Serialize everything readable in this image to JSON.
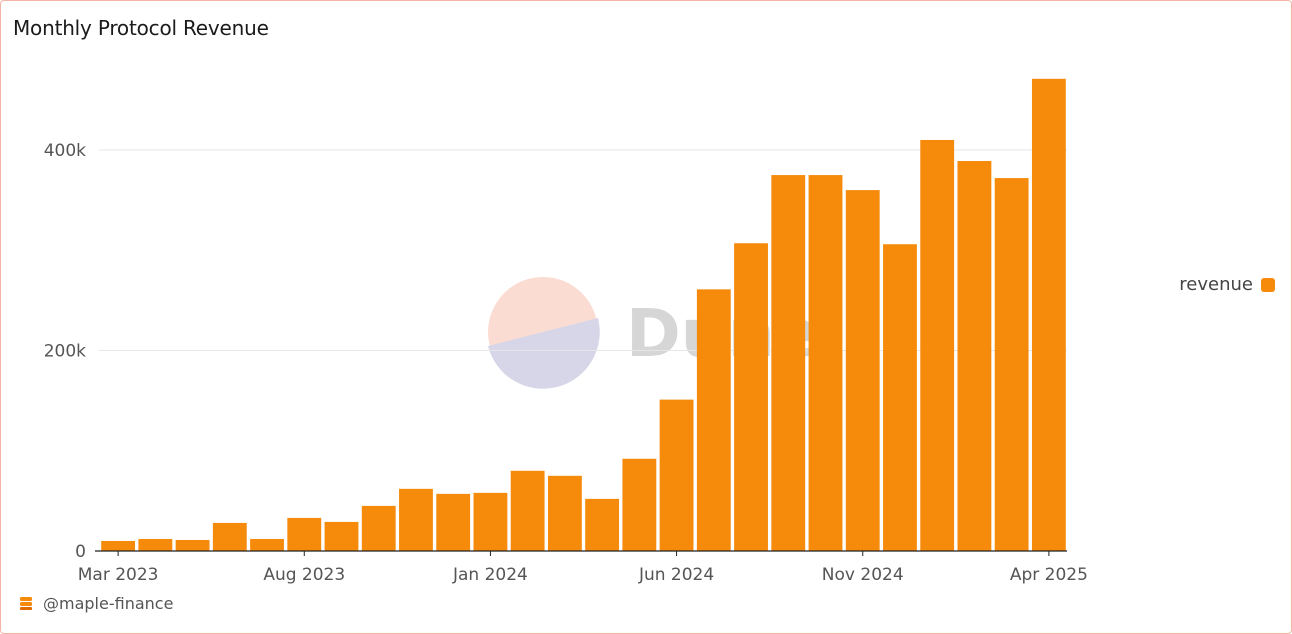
{
  "title": "Monthly Protocol Revenue",
  "watermark": "Dune",
  "footer": {
    "handle": "@maple-finance",
    "icon": "maple-finance-icon"
  },
  "colors": {
    "bar": "#f58a0b",
    "grid": "#e6e6e6",
    "axis": "#222222"
  },
  "chart_data": {
    "type": "bar",
    "title": "Monthly Protocol Revenue",
    "xlabel": "",
    "ylabel": "",
    "categories": [
      "Mar 2023",
      "Apr 2023",
      "May 2023",
      "Jun 2023",
      "Jul 2023",
      "Aug 2023",
      "Sep 2023",
      "Oct 2023",
      "Nov 2023",
      "Dec 2023",
      "Jan 2024",
      "Feb 2024",
      "Mar 2024",
      "Apr 2024",
      "May 2024",
      "Jun 2024",
      "Jul 2024",
      "Aug 2024",
      "Sep 2024",
      "Oct 2024",
      "Nov 2024",
      "Dec 2024",
      "Jan 2025",
      "Feb 2025",
      "Mar 2025",
      "Apr 2025"
    ],
    "series": [
      {
        "name": "revenue",
        "values": [
          10000,
          12000,
          11000,
          28000,
          12000,
          33000,
          29000,
          45000,
          62000,
          57000,
          58000,
          80000,
          75000,
          52000,
          92000,
          151000,
          261000,
          307000,
          375000,
          375000,
          360000,
          306000,
          410000,
          389000,
          372000,
          471000
        ]
      }
    ],
    "x_tick_labels": [
      "Mar 2023",
      "Aug 2023",
      "Jan 2024",
      "Jun 2024",
      "Nov 2024",
      "Apr 2025"
    ],
    "y_ticks": [
      0,
      200000,
      400000
    ],
    "y_tick_labels": [
      "0",
      "200k",
      "400k"
    ],
    "ylim": [
      0,
      480000
    ],
    "grid": "horizontal",
    "legend": {
      "position": "right",
      "entries": [
        "revenue"
      ]
    }
  }
}
